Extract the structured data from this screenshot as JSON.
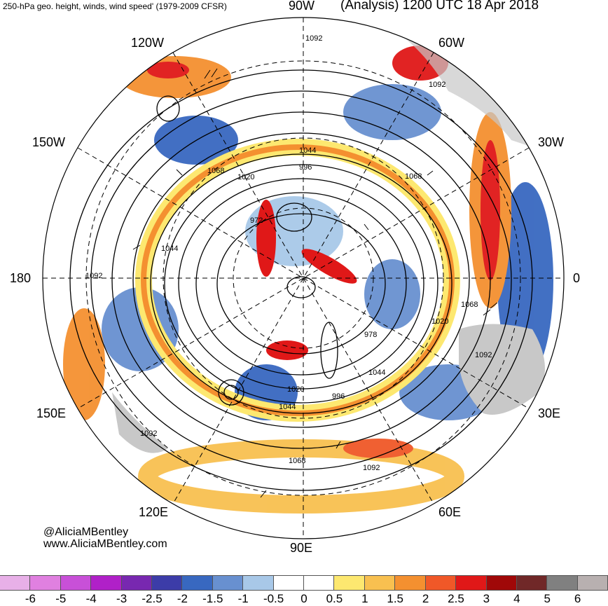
{
  "header": {
    "left_title": "250-hPa geo. height, winds, wind speed' (1979-2009 CFSR)",
    "right_title": "(Analysis) 1200 UTC 18 Apr 2018"
  },
  "credits": {
    "twitter": "@AliciaMBentley",
    "website": "www.AliciaMBentley.com"
  },
  "longitude_labels": [
    "90W",
    "60W",
    "30W",
    "0",
    "30E",
    "60E",
    "90E",
    "120E",
    "150E",
    "180",
    "150W",
    "120W"
  ],
  "contour_labels": [
    "1092",
    "1092",
    "1044",
    "996",
    "1068",
    "1020",
    "972",
    "1044",
    "1068",
    "1092",
    "1068",
    "1020",
    "978",
    "1044",
    "996",
    "1020",
    "1044",
    "1068",
    "1092",
    "1092",
    "1092"
  ],
  "colorbar": {
    "tick_labels": [
      "-6",
      "-5",
      "-4",
      "-3",
      "-2.5",
      "-2",
      "-1.5",
      "-1",
      "-0.5",
      "0",
      "0.5",
      "1",
      "1.5",
      "2",
      "2.5",
      "3",
      "4",
      "5",
      "6"
    ],
    "colors": [
      "#e8b0e8",
      "#e080e0",
      "#c850d8",
      "#b020c8",
      "#7828b0",
      "#3c3ca8",
      "#3868c0",
      "#6890d0",
      "#a8c8e8",
      "#ffffff",
      "#ffffff",
      "#fde870",
      "#f8c050",
      "#f49030",
      "#f05828",
      "#e01818",
      "#a00808",
      "#702828",
      "#808080",
      "#b8b0b0"
    ]
  }
}
